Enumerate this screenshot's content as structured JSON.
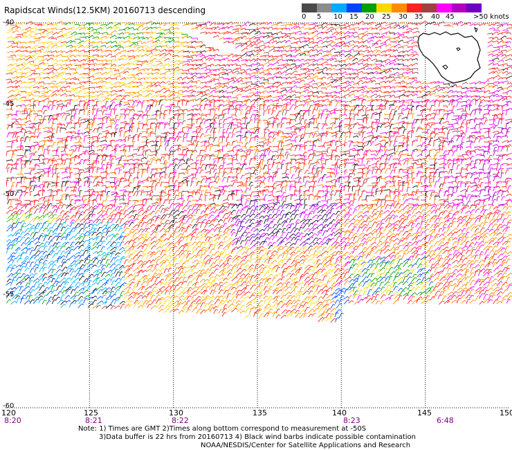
{
  "title": "Rapidscat Winds(12.5KM) 20160713 descending",
  "colorbar": {
    "colors": [
      "#4a4a4a",
      "#8c8c8c",
      "#00aaff",
      "#0044ff",
      "#00a000",
      "#ffd700",
      "#ff8c00",
      "#ff2020",
      "#a04040",
      "#ff00ff",
      "#b000c0",
      "#7000c0"
    ],
    "labels": [
      "0",
      "5",
      "10",
      "15",
      "20",
      "25",
      "30",
      "35",
      "40",
      "45",
      ">50 knots"
    ]
  },
  "axes": {
    "lon_labels": [
      "120",
      "125",
      "130",
      "135",
      "140",
      "145",
      "150"
    ],
    "lat_labels": [
      "-40",
      "-45",
      "-50",
      "-55",
      "-60"
    ],
    "time_labels": [
      "8:20",
      "8:21",
      "8:22",
      "8:23",
      "6:48"
    ]
  },
  "notes": {
    "line1": "Note: 1) Times are GMT 2)Times along bottom correspond to measurement at -50S",
    "line2": "3)Data buffer is 22 hrs from 20160713 4) Black wind barbs indicate possible contamination",
    "line3": "NOAA/NESDIS/Center for Satellite Applications and Research"
  }
}
